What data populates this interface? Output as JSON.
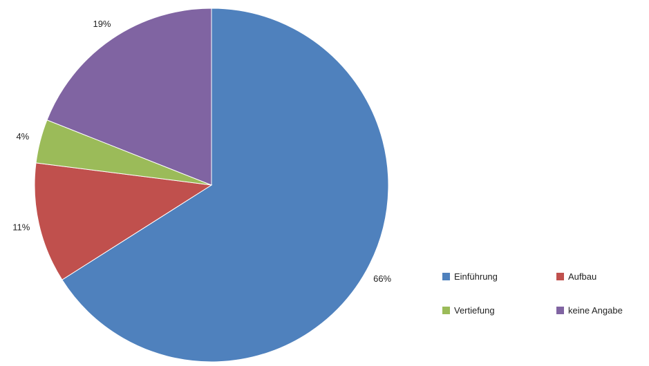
{
  "chart_data": {
    "type": "pie",
    "title": "",
    "categories": [
      "Einführung",
      "Aufbau",
      "Vertiefung",
      "keine Angabe"
    ],
    "values": [
      66,
      11,
      4,
      19
    ],
    "labels": [
      "66%",
      "11%",
      "4%",
      "19%"
    ],
    "colors": [
      "#4F81BD",
      "#C0504D",
      "#9BBB59",
      "#8064A2"
    ],
    "legend_position": "bottom-right"
  },
  "legend": {
    "items": [
      {
        "label": "Einführung",
        "color": "#4F81BD"
      },
      {
        "label": "Aufbau",
        "color": "#C0504D"
      },
      {
        "label": "Vertiefung",
        "color": "#9BBB59"
      },
      {
        "label": "keine Angabe",
        "color": "#8064A2"
      }
    ]
  }
}
